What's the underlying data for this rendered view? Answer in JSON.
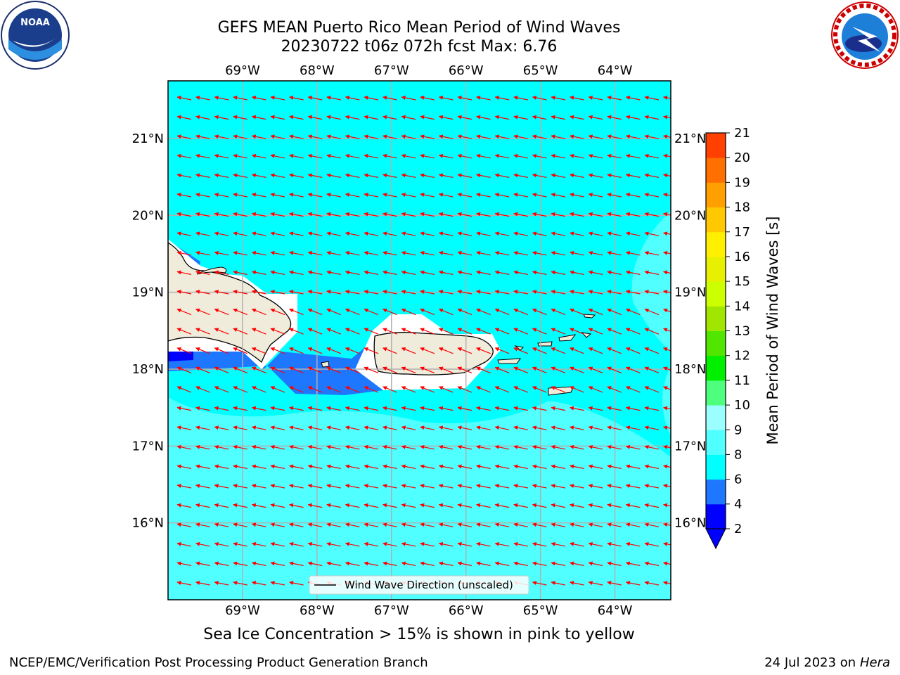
{
  "title_line1": "GEFS MEAN Puerto Rico Mean Period of Wind Waves",
  "title_line2": "20230722 t06z 072h fcst   Max: 6.76",
  "logos": {
    "left": "noaa-logo",
    "left_text": "NOAA",
    "right": "national-weather-service-logo"
  },
  "map": {
    "lon_range": [
      -70.0,
      -63.25
    ],
    "lat_range": [
      15.0,
      21.75
    ],
    "lon_ticks": [
      "69°W",
      "68°W",
      "67°W",
      "66°W",
      "65°W",
      "64°W"
    ],
    "lat_ticks": [
      "21°N",
      "20°N",
      "19°N",
      "18°N",
      "17°N",
      "16°N"
    ],
    "ocean_color": "#00ffff",
    "land_color": "#f0ecdc",
    "vector_color": "#ff0000",
    "vector_direction": "westward"
  },
  "legend": {
    "label": "Wind Wave Direction (unscaled)"
  },
  "colorbar": {
    "label": "Mean Period of Wind Waves [s]",
    "ticks": [
      "2",
      "4",
      "6",
      "8",
      "9",
      "10",
      "11",
      "12",
      "13",
      "14",
      "15",
      "16",
      "17",
      "18",
      "19",
      "20",
      "21"
    ],
    "colors": [
      "#0000ff",
      "#1e78ff",
      "#00ffff",
      "#50ffff",
      "#9cffff",
      "#4eff7d",
      "#00f000",
      "#50e600",
      "#a0e600",
      "#ccff00",
      "#e6f000",
      "#fff000",
      "#ffc800",
      "#ffa000",
      "#ff7000",
      "#ff4000",
      "#ff0000"
    ]
  },
  "subtitle": "Sea Ice Concentration > 15% is shown in pink to yellow",
  "footer": {
    "left": "NCEP/EMC/Verification Post Processing Product Generation Branch",
    "right_date": "24 Jul 2023 on ",
    "right_host": "Hera"
  }
}
